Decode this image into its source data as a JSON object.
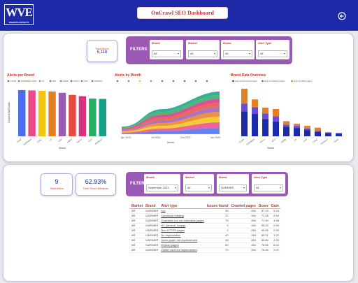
{
  "app": {
    "title": "OnCrawl SEO Dashboard",
    "logo": "WVE",
    "logo_sub": "WEBSITE EXPERTS"
  },
  "colors": {
    "header": "#1d2aa8",
    "filters": "#9b59b6",
    "accent": "#c0392b"
  },
  "icons": {
    "back": "back-arrow-icon"
  },
  "top": {
    "kpi": {
      "label": "Total Alerts",
      "value": "6,118"
    },
    "filters": {
      "title": "FILTERS",
      "items": [
        {
          "label": "Month",
          "value": "All"
        },
        {
          "label": "Market",
          "value": "All"
        },
        {
          "label": "Brand",
          "value": "All"
        },
        {
          "label": "Alert Type",
          "value": "All"
        }
      ]
    },
    "brand_chart_title": "Alerts per Brand",
    "month_chart_title": "Alerts by Month",
    "overview_chart_title": "Brand Data Overview"
  },
  "bottom": {
    "kpi1": {
      "value": "9",
      "label": "Total Alerts"
    },
    "kpi2": {
      "value": "62.93%",
      "label": "Tech Score Measure"
    },
    "filters": {
      "title": "FILTERS",
      "items": [
        {
          "label": "Month",
          "value": "September 2023"
        },
        {
          "label": "Market",
          "value": "All"
        },
        {
          "label": "Brand",
          "value": "GARNIER"
        },
        {
          "label": "Alert Type",
          "value": "All"
        }
      ]
    },
    "table": {
      "headers": [
        "Market",
        "Brand",
        "Alert type",
        "Issues found",
        "Crawled pages",
        "Score",
        "Gain"
      ],
      "rows": [
        [
          "AR",
          "GARNIER",
          "4xx",
          "35",
          "284",
          "87.13",
          "5.18"
        ],
        [
          "AR",
          "GARNIER",
          "Canonical missing",
          "72",
          "284",
          "71.18",
          "2.94"
        ],
        [
          "AR",
          "GARNIER",
          "Crawlable but not indexable pages",
          "79",
          "284",
          "71.59",
          "3.98"
        ],
        [
          "AR",
          "GARNIER",
          "H1 (several, empty)",
          "9",
          "284",
          "95.02",
          "2.90"
        ],
        [
          "AR",
          "GARNIER",
          "Non HTTPS pages",
          "1",
          "284",
          "99.65",
          "0.99"
        ],
        [
          "AR",
          "GARNIER",
          "No organization",
          "42",
          "284",
          "85.21",
          "1.22"
        ],
        [
          "AR",
          "GARNIER",
          "Open graph not implemented",
          "46",
          "284",
          "83.80",
          "2.00"
        ],
        [
          "AR",
          "GARNIER",
          "Orphan pages",
          "69",
          "284",
          "75.53",
          "6.04"
        ],
        [
          "AR",
          "GARNIER",
          "Twitter card not implemented",
          "70",
          "284",
          "75.35",
          "2.07"
        ]
      ]
    }
  },
  "chart_data": [
    {
      "type": "bar",
      "title": "Alerts per Brand",
      "xlabel": "Brand",
      "ylabel": "Count of Alert Date",
      "categories": [
        "YSOE",
        "GARNIER",
        "LANC",
        "LP",
        "LRP",
        "LMED",
        "VICHY",
        "CDT",
        "KERAST"
      ],
      "values": [
        680,
        675,
        670,
        660,
        640,
        610,
        590,
        555,
        550
      ],
      "colors": [
        "#4a6cf0",
        "#e84a8a",
        "#f1c40f",
        "#e67e22",
        "#9b59b6",
        "#e74c3c",
        "#d63384",
        "#27ae60",
        "#16a085"
      ],
      "ylim": [
        0,
        700
      ],
      "legend_position": "top"
    },
    {
      "type": "area",
      "title": "Alerts by Month",
      "xlabel": "Month",
      "x": [
        "Apr 2023",
        "Jul 2023",
        "Oct 2023",
        "Jan 2024"
      ],
      "legend_position": "top"
    },
    {
      "type": "bar",
      "title": "Brand Data Overview",
      "xlabel": "Brand",
      "categories": [
        "FLAIR",
        "GARNIER",
        "VICHY",
        "CDT",
        "LMED",
        "LP",
        "LRP",
        "LANC",
        "KERAST",
        "YSOE"
      ],
      "series": [
        {
          "name": "Avg of Canonical pages",
          "values": [
            96,
            86,
            66,
            57,
            37,
            32,
            24,
            17,
            12,
            10
          ],
          "color": "#1d2aa8"
        },
        {
          "name": "Avg of Crawled pages",
          "values": [
            30,
            26,
            22,
            20,
            8,
            8,
            6,
            5,
            3,
            3
          ],
          "color": "#6c4cd0"
        },
        {
          "name": "Avg of HTML pages",
          "values": [
            57,
            30,
            22,
            28,
            13,
            8,
            10,
            11,
            0,
            0
          ],
          "color": "#e67e22"
        }
      ],
      "legend_position": "top"
    }
  ]
}
